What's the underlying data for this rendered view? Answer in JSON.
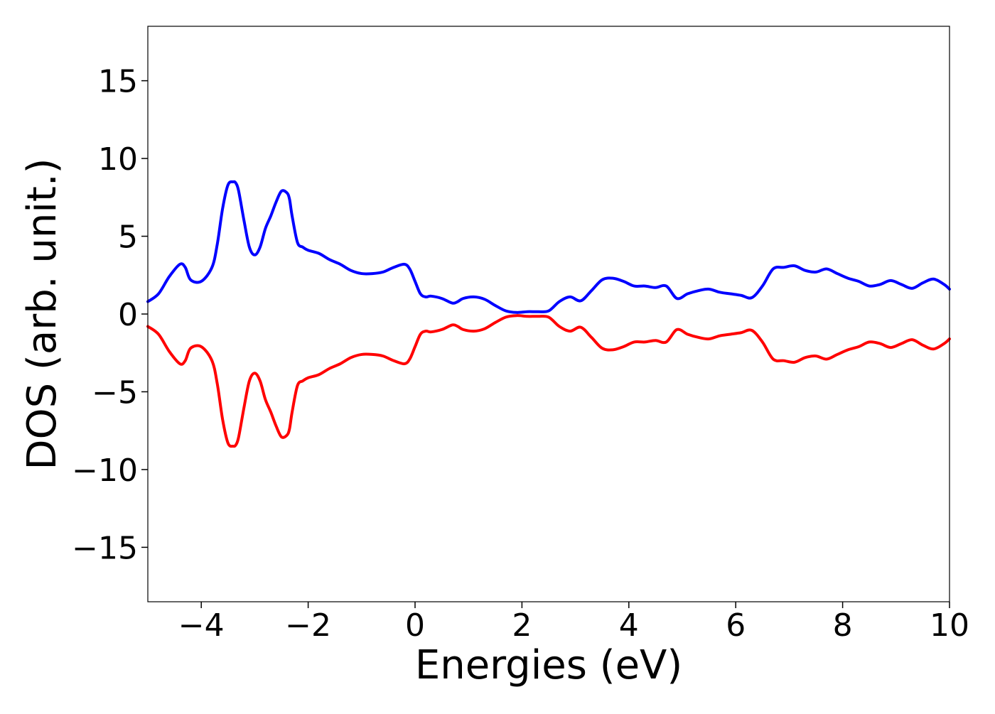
{
  "chart_data": {
    "type": "line",
    "title": "",
    "xlabel": "Energies (eV)",
    "ylabel": "DOS (arb. unit.)",
    "xlim": [
      -5,
      10
    ],
    "ylim": [
      -18.5,
      18.5
    ],
    "xticks": [
      -4,
      -2,
      0,
      2,
      4,
      6,
      8,
      10
    ],
    "yticks": [
      -15,
      -10,
      -5,
      0,
      5,
      10,
      15
    ],
    "xtick_labels": [
      "−4",
      "−2",
      "0",
      "2",
      "4",
      "6",
      "8",
      "10"
    ],
    "ytick_labels": [
      "−15",
      "−10",
      "−5",
      "0",
      "5",
      "10",
      "15"
    ],
    "grid": false,
    "legend": "none",
    "series": [
      {
        "color": "#0000ff",
        "x": [
          -5.0,
          -4.8,
          -4.6,
          -4.4,
          -4.3,
          -4.2,
          -4.0,
          -3.8,
          -3.7,
          -3.6,
          -3.5,
          -3.4,
          -3.35,
          -3.3,
          -3.2,
          -3.1,
          -3.0,
          -2.9,
          -2.8,
          -2.7,
          -2.6,
          -2.5,
          -2.4,
          -2.35,
          -2.3,
          -2.2,
          -2.1,
          -2.0,
          -1.8,
          -1.6,
          -1.4,
          -1.2,
          -1.0,
          -0.8,
          -0.6,
          -0.4,
          -0.2,
          -0.1,
          0.0,
          0.1,
          0.2,
          0.3,
          0.5,
          0.7,
          0.8,
          0.9,
          1.1,
          1.3,
          1.5,
          1.7,
          1.9,
          2.1,
          2.3,
          2.5,
          2.7,
          2.9,
          3.1,
          3.3,
          3.5,
          3.7,
          3.9,
          4.1,
          4.3,
          4.5,
          4.7,
          4.9,
          5.1,
          5.3,
          5.5,
          5.7,
          5.9,
          6.1,
          6.3,
          6.5,
          6.7,
          6.9,
          7.1,
          7.3,
          7.5,
          7.7,
          7.9,
          8.1,
          8.3,
          8.5,
          8.7,
          8.9,
          9.1,
          9.3,
          9.5,
          9.7,
          9.9,
          10.0
        ],
        "y": [
          0.8,
          1.3,
          2.4,
          3.2,
          3.0,
          2.2,
          2.1,
          3.0,
          4.5,
          6.8,
          8.3,
          8.5,
          8.4,
          7.9,
          6.0,
          4.3,
          3.8,
          4.3,
          5.5,
          6.3,
          7.2,
          7.9,
          7.8,
          7.4,
          6.3,
          4.6,
          4.3,
          4.1,
          3.9,
          3.5,
          3.2,
          2.8,
          2.6,
          2.6,
          2.7,
          3.0,
          3.2,
          2.9,
          2.1,
          1.3,
          1.1,
          1.15,
          1.0,
          0.7,
          0.8,
          1.0,
          1.1,
          0.95,
          0.55,
          0.2,
          0.1,
          0.15,
          0.15,
          0.2,
          0.8,
          1.1,
          0.85,
          1.5,
          2.2,
          2.3,
          2.1,
          1.8,
          1.8,
          1.7,
          1.8,
          1.0,
          1.3,
          1.5,
          1.6,
          1.4,
          1.3,
          1.2,
          1.05,
          1.8,
          2.9,
          3.0,
          3.1,
          2.8,
          2.7,
          2.9,
          2.6,
          2.3,
          2.1,
          1.8,
          1.9,
          2.15,
          1.9,
          1.65,
          2.0,
          2.25,
          1.9,
          1.6
        ]
      },
      {
        "color": "#ff0000",
        "x": [
          -5.0,
          -4.8,
          -4.6,
          -4.4,
          -4.3,
          -4.2,
          -4.0,
          -3.8,
          -3.7,
          -3.6,
          -3.5,
          -3.4,
          -3.35,
          -3.3,
          -3.2,
          -3.1,
          -3.0,
          -2.9,
          -2.8,
          -2.7,
          -2.6,
          -2.5,
          -2.4,
          -2.35,
          -2.3,
          -2.2,
          -2.1,
          -2.0,
          -1.8,
          -1.6,
          -1.4,
          -1.2,
          -1.0,
          -0.8,
          -0.6,
          -0.4,
          -0.2,
          -0.1,
          0.0,
          0.1,
          0.2,
          0.3,
          0.5,
          0.7,
          0.8,
          0.9,
          1.1,
          1.3,
          1.5,
          1.7,
          1.9,
          2.1,
          2.3,
          2.5,
          2.7,
          2.9,
          3.1,
          3.3,
          3.5,
          3.7,
          3.9,
          4.1,
          4.3,
          4.5,
          4.7,
          4.9,
          5.1,
          5.3,
          5.5,
          5.7,
          5.9,
          6.1,
          6.3,
          6.5,
          6.7,
          6.9,
          7.1,
          7.3,
          7.5,
          7.7,
          7.9,
          8.1,
          8.3,
          8.5,
          8.7,
          8.9,
          9.1,
          9.3,
          9.5,
          9.7,
          9.9,
          10.0
        ],
        "y": [
          -0.8,
          -1.3,
          -2.4,
          -3.2,
          -3.0,
          -2.2,
          -2.1,
          -3.0,
          -4.5,
          -6.8,
          -8.3,
          -8.5,
          -8.4,
          -7.9,
          -6.0,
          -4.3,
          -3.8,
          -4.3,
          -5.5,
          -6.3,
          -7.2,
          -7.9,
          -7.8,
          -7.4,
          -6.3,
          -4.6,
          -4.3,
          -4.1,
          -3.9,
          -3.5,
          -3.2,
          -2.8,
          -2.6,
          -2.6,
          -2.7,
          -3.0,
          -3.2,
          -2.9,
          -2.1,
          -1.3,
          -1.1,
          -1.15,
          -1.0,
          -0.7,
          -0.8,
          -1.0,
          -1.1,
          -0.95,
          -0.55,
          -0.2,
          -0.1,
          -0.15,
          -0.15,
          -0.2,
          -0.8,
          -1.1,
          -0.85,
          -1.5,
          -2.2,
          -2.3,
          -2.1,
          -1.8,
          -1.8,
          -1.7,
          -1.8,
          -1.0,
          -1.3,
          -1.5,
          -1.6,
          -1.4,
          -1.3,
          -1.2,
          -1.05,
          -1.8,
          -2.9,
          -3.0,
          -3.1,
          -2.8,
          -2.7,
          -2.9,
          -2.6,
          -2.3,
          -2.1,
          -1.8,
          -1.9,
          -2.15,
          -1.9,
          -1.65,
          -2.0,
          -2.25,
          -1.9,
          -1.6
        ]
      }
    ]
  }
}
